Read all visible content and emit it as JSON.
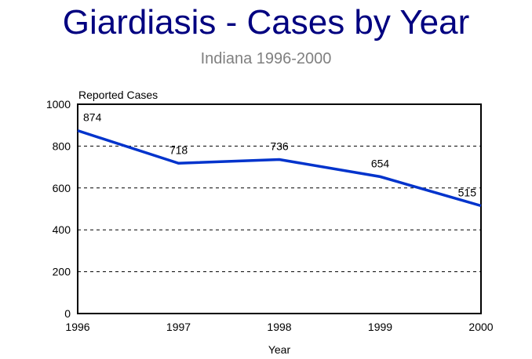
{
  "chart_data": {
    "type": "line",
    "title": "Giardiasis - Cases by Year",
    "subtitle": "Indiana 1996-2000",
    "xlabel": "Year",
    "ylabel": "Reported Cases",
    "categories": [
      "1996",
      "1997",
      "1998",
      "1999",
      "2000"
    ],
    "series": [
      {
        "name": "Reported Cases",
        "values": [
          874,
          718,
          736,
          654,
          515
        ],
        "color": "#0033cc"
      }
    ],
    "ylim": [
      0,
      1000
    ],
    "yticks": [
      0,
      200,
      400,
      600,
      800,
      1000
    ],
    "grid": "horizontal dashed",
    "legend": "none"
  }
}
